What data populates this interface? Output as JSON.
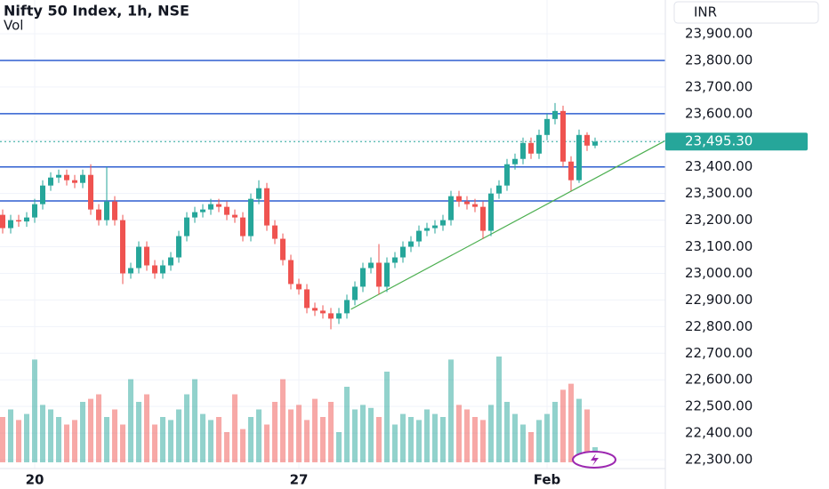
{
  "chart_data": {
    "type": "candlestick",
    "title": "Nifty 50 Index, 1h, NSE",
    "volume_label": "Vol",
    "currency": "INR",
    "categories": [
      null,
      null,
      null,
      null,
      "20",
      null,
      null,
      null,
      null,
      null,
      null,
      null,
      null,
      null,
      null,
      null,
      null,
      null,
      null,
      null,
      null,
      null,
      null,
      null,
      null,
      null,
      null,
      null,
      null,
      null,
      null,
      null,
      null,
      null,
      null,
      null,
      null,
      "27",
      null,
      null,
      null,
      null,
      null,
      null,
      null,
      null,
      null,
      null,
      null,
      null,
      null,
      null,
      null,
      null,
      null,
      null,
      null,
      null,
      null,
      null,
      null,
      null,
      null,
      null,
      null,
      null,
      null,
      null,
      "Feb",
      null,
      null,
      null,
      null,
      null,
      null
    ],
    "open": [
      23220,
      23170,
      23200,
      23195,
      23210,
      23260,
      23330,
      23360,
      23370,
      23350,
      23340,
      23370,
      23240,
      23200,
      23270,
      23200,
      23000,
      23020,
      23100,
      23030,
      23000,
      23030,
      23060,
      23140,
      23210,
      23230,
      23240,
      23260,
      23250,
      23220,
      23210,
      23140,
      23280,
      23320,
      23180,
      23130,
      23050,
      22960,
      22940,
      22870,
      22860,
      22850,
      22830,
      22850,
      22900,
      22950,
      23020,
      23040,
      22950,
      23040,
      23060,
      23100,
      23120,
      23160,
      23170,
      23180,
      23200,
      23290,
      23270,
      23260,
      23250,
      23160,
      23300,
      23330,
      23410,
      23430,
      23490,
      23450,
      23520,
      23580,
      23610,
      23420,
      23350,
      23520,
      23480
    ],
    "high": [
      23240,
      23220,
      23220,
      23230,
      23280,
      23350,
      23380,
      23390,
      23390,
      23370,
      23390,
      23410,
      23260,
      23400,
      23290,
      23220,
      23040,
      23120,
      23120,
      23050,
      23050,
      23080,
      23160,
      23230,
      23250,
      23260,
      23280,
      23280,
      23270,
      23240,
      23230,
      23300,
      23350,
      23340,
      23200,
      23150,
      23070,
      22980,
      22960,
      22890,
      22880,
      22870,
      22870,
      22920,
      22970,
      23040,
      23060,
      23110,
      23060,
      23080,
      23120,
      23140,
      23180,
      23190,
      23200,
      23220,
      23310,
      23310,
      23290,
      23280,
      23270,
      23320,
      23350,
      23430,
      23450,
      23510,
      23510,
      23540,
      23600,
      23640,
      23630,
      23440,
      23540,
      23530,
      23510
    ],
    "low": [
      23150,
      23150,
      23175,
      23175,
      23190,
      23240,
      23310,
      23340,
      23330,
      23320,
      23320,
      23220,
      23180,
      23180,
      23180,
      22960,
      22980,
      23000,
      23010,
      22980,
      22980,
      23010,
      23040,
      23120,
      23190,
      23210,
      23220,
      23230,
      23200,
      23190,
      23120,
      23120,
      23260,
      23160,
      23110,
      23030,
      22940,
      22920,
      22850,
      22840,
      22830,
      22790,
      22810,
      22830,
      22880,
      22930,
      23000,
      22920,
      22930,
      23020,
      23040,
      23080,
      23100,
      23140,
      23150,
      23160,
      23180,
      23250,
      23240,
      23230,
      23130,
      23140,
      23280,
      23310,
      23390,
      23410,
      23430,
      23430,
      23500,
      23560,
      23400,
      23310,
      23340,
      23460,
      23470
    ],
    "close": [
      23170,
      23200,
      23195,
      23210,
      23260,
      23330,
      23360,
      23370,
      23350,
      23340,
      23370,
      23240,
      23200,
      23270,
      23200,
      23000,
      23020,
      23100,
      23030,
      23000,
      23030,
      23060,
      23140,
      23210,
      23230,
      23240,
      23260,
      23250,
      23220,
      23210,
      23140,
      23280,
      23320,
      23180,
      23130,
      23050,
      22960,
      22940,
      22870,
      22860,
      22850,
      22830,
      22850,
      22900,
      22950,
      23020,
      23040,
      22950,
      23040,
      23060,
      23100,
      23120,
      23160,
      23170,
      23180,
      23200,
      23290,
      23270,
      23260,
      23250,
      23160,
      23300,
      23330,
      23410,
      23430,
      23490,
      23450,
      23520,
      23580,
      23610,
      23420,
      23350,
      23520,
      23480,
      23495
    ],
    "volume": [
      30,
      35,
      28,
      32,
      68,
      38,
      35,
      30,
      25,
      28,
      40,
      42,
      45,
      30,
      35,
      25,
      55,
      40,
      45,
      25,
      30,
      28,
      35,
      45,
      55,
      32,
      28,
      30,
      20,
      45,
      22,
      30,
      35,
      25,
      40,
      55,
      35,
      38,
      28,
      42,
      30,
      40,
      20,
      50,
      35,
      38,
      36,
      30,
      60,
      25,
      32,
      30,
      28,
      35,
      32,
      30,
      68,
      38,
      35,
      30,
      28,
      38,
      70,
      40,
      32,
      25,
      20,
      28,
      32,
      40,
      48,
      52,
      42,
      35,
      10
    ],
    "volume_lim": [
      0,
      100
    ],
    "up_color": "#26a69a",
    "down_color": "#ef5350",
    "ylim": [
      22190,
      24027
    ],
    "yticks": [
      {
        "value": 22300,
        "label": "22,300.00"
      },
      {
        "value": 22400,
        "label": "22,400.00"
      },
      {
        "value": 22500,
        "label": "22,500.00"
      },
      {
        "value": 22600,
        "label": "22,600.00"
      },
      {
        "value": 22700,
        "label": "22,700.00"
      },
      {
        "value": 22800,
        "label": "22,800.00"
      },
      {
        "value": 22900,
        "label": "22,900.00"
      },
      {
        "value": 23000,
        "label": "23,000.00"
      },
      {
        "value": 23100,
        "label": "23,100.00"
      },
      {
        "value": 23200,
        "label": "23,200.00"
      },
      {
        "value": 23300,
        "label": "23,300.00"
      },
      {
        "value": 23400,
        "label": "23,400.00"
      },
      {
        "value": 23500,
        "label": "23,500.00"
      },
      {
        "value": 23600,
        "label": "23,600.00"
      },
      {
        "value": 23700,
        "label": "23,700.00"
      },
      {
        "value": 23800,
        "label": "23,800.00"
      },
      {
        "value": 23900,
        "label": "23,900.00"
      }
    ],
    "levels": [
      {
        "value": 23800,
        "color": "#2f5fd0"
      },
      {
        "value": 23600,
        "color": "#2f5fd0"
      },
      {
        "value": 23400,
        "color": "#2f5fd0"
      },
      {
        "value": 23272,
        "color": "#2f5fd0"
      }
    ],
    "trendline": {
      "color": "#4caf50",
      "points": [
        [
          43.5,
          22865
        ],
        [
          74,
          23357
        ]
      ]
    },
    "last_price": {
      "value": 23495.3,
      "label": "23,495.30"
    },
    "grid": true
  }
}
